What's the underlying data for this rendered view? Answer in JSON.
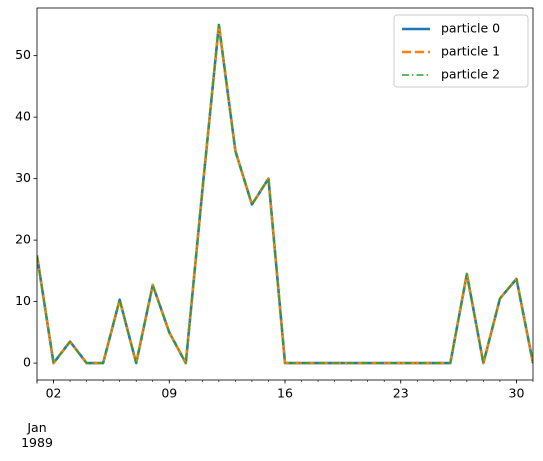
{
  "chart_data": {
    "type": "line",
    "x": [
      "1989-01-01",
      "1989-01-02",
      "1989-01-03",
      "1989-01-04",
      "1989-01-05",
      "1989-01-06",
      "1989-01-07",
      "1989-01-08",
      "1989-01-09",
      "1989-01-10",
      "1989-01-11",
      "1989-01-12",
      "1989-01-13",
      "1989-01-14",
      "1989-01-15",
      "1989-01-16",
      "1989-01-17",
      "1989-01-18",
      "1989-01-19",
      "1989-01-20",
      "1989-01-21",
      "1989-01-22",
      "1989-01-23",
      "1989-01-24",
      "1989-01-25",
      "1989-01-26",
      "1989-01-27",
      "1989-01-28",
      "1989-01-29",
      "1989-01-30",
      "1989-01-31"
    ],
    "series": [
      {
        "name": "particle 0",
        "color": "#1f77b4",
        "dash": "solid",
        "values": [
          17.5,
          0,
          3.5,
          0,
          0,
          10.3,
          0,
          12.7,
          5,
          0,
          28,
          55,
          34.5,
          25.8,
          30,
          0,
          0,
          0,
          0,
          0,
          0,
          0,
          0,
          0,
          0,
          0,
          14.5,
          0,
          10.5,
          13.7,
          0
        ]
      },
      {
        "name": "particle 1",
        "color": "#ff7f0e",
        "dash": "dashed",
        "values": [
          17.5,
          0,
          3.5,
          0,
          0,
          10.3,
          0,
          12.7,
          5,
          0,
          28,
          55,
          34.5,
          25.8,
          30,
          0,
          0,
          0,
          0,
          0,
          0,
          0,
          0,
          0,
          0,
          0,
          14.5,
          0,
          10.5,
          13.7,
          0
        ]
      },
      {
        "name": "particle 2",
        "color": "#2ca02c",
        "dash": "dashdot",
        "values": [
          17.5,
          0,
          3.5,
          0,
          0,
          10.3,
          0,
          12.7,
          5,
          0,
          28,
          55,
          34.5,
          25.8,
          30,
          0,
          0,
          0,
          0,
          0,
          0,
          0,
          0,
          0,
          0,
          0,
          14.5,
          0,
          10.5,
          13.7,
          0
        ]
      }
    ],
    "xlim": [
      "1989-01-01",
      "1989-01-31"
    ],
    "xticks": [
      {
        "value": "1989-01-01",
        "label": "Jan\n1989"
      },
      {
        "value": "1989-01-02",
        "label": "02"
      },
      {
        "value": "1989-01-09",
        "label": "09"
      },
      {
        "value": "1989-01-16",
        "label": "16"
      },
      {
        "value": "1989-01-23",
        "label": "23"
      },
      {
        "value": "1989-01-30",
        "label": "30"
      }
    ],
    "ylim": [
      -2.75,
      57.75
    ],
    "yticks": [
      0,
      10,
      20,
      30,
      40,
      50
    ],
    "legend": "upper right"
  }
}
